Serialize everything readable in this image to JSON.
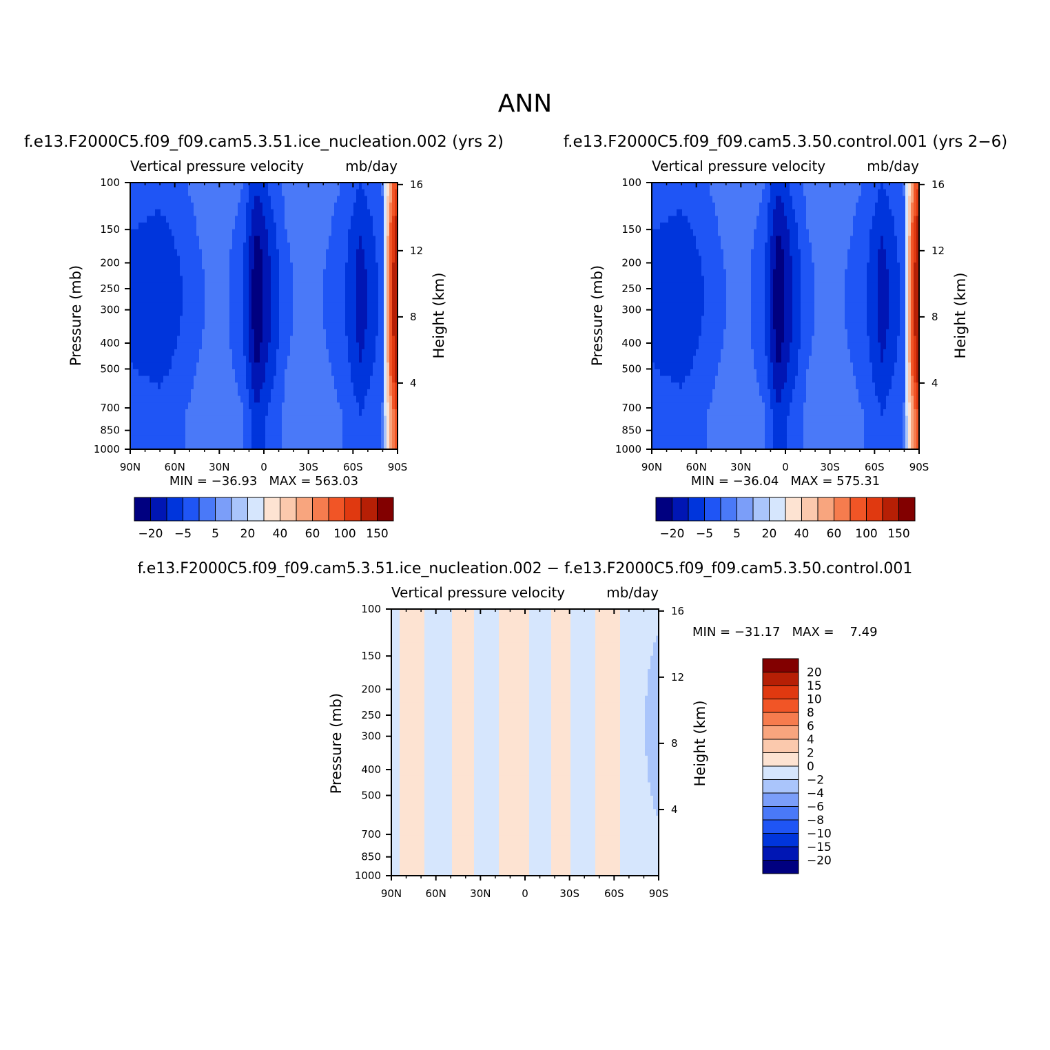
{
  "figure": {
    "season": "ANN"
  },
  "colors": {
    "cool": [
      "#000080",
      "#0016b4",
      "#0035dc",
      "#1f55f5",
      "#4a79f8",
      "#7b9ef9",
      "#aac5fb",
      "#d6e6fd"
    ],
    "warm": [
      "#fde3d2",
      "#fbc9ad",
      "#f8a57e",
      "#f67c4e",
      "#f15526",
      "#e03910",
      "#b61f05",
      "#820000"
    ]
  },
  "panels": [
    {
      "title": "f.e13.F2000C5.f09_f09.cam5.3.51.ice_nucleation.002 (yrs 2)",
      "variable": "Vertical pressure velocity",
      "units": "mb/day",
      "ylabel": "Pressure (mb)",
      "y2label": "Height (km)",
      "stats": "MIN = −36.93   MAX = 563.03",
      "colorbar_labels": [
        "−20",
        "−5",
        "5",
        "20",
        "40",
        "60",
        "100",
        "150"
      ]
    },
    {
      "title": "f.e13.F2000C5.f09_f09.cam5.3.50.control.001 (yrs 2−6)",
      "variable": "Vertical pressure velocity",
      "units": "mb/day",
      "ylabel": "Pressure (mb)",
      "y2label": "Height (km)",
      "stats": "MIN = −36.04   MAX = 575.31",
      "colorbar_labels": [
        "−20",
        "−5",
        "5",
        "20",
        "40",
        "60",
        "100",
        "150"
      ]
    },
    {
      "title": "f.e13.F2000C5.f09_f09.cam5.3.51.ice_nucleation.002 − f.e13.F2000C5.f09_f09.cam5.3.50.control.001",
      "variable": "Vertical pressure velocity",
      "units": "mb/day",
      "ylabel": "Pressure (mb)",
      "y2label": "Height (km)",
      "stats": "MIN = −31.17   MAX =    7.49",
      "colorbar_labels": [
        "20",
        "15",
        "10",
        "8",
        "6",
        "4",
        "2",
        "0",
        "−2",
        "−4",
        "−6",
        "−8",
        "−10",
        "−15",
        "−20"
      ]
    }
  ],
  "chart_data": [
    {
      "type": "heatmap",
      "title": "f.e13.F2000C5.f09_f09.cam5.3.51.ice_nucleation.002 (yrs 2)",
      "xlabel": "",
      "ylabel": "Pressure (mb)",
      "y2label": "Height (km)",
      "x_ticks": [
        "90N",
        "60N",
        "30N",
        "0",
        "30S",
        "60S",
        "90S"
      ],
      "y_ticks": [
        100,
        150,
        200,
        250,
        300,
        400,
        500,
        700,
        850,
        1000
      ],
      "y2_ticks": [
        16,
        12,
        8,
        4
      ],
      "y_scale": "log",
      "ylim": [
        1000,
        100
      ],
      "min": -36.93,
      "max": 563.03,
      "levels": [
        -20,
        -15,
        -10,
        -5,
        0,
        5,
        10,
        20,
        30,
        40,
        50,
        60,
        80,
        100,
        150
      ],
      "lat_bands": [
        {
          "lat": 90,
          "value": -12
        },
        {
          "lat": 70,
          "value": -14
        },
        {
          "lat": 55,
          "value": -10
        },
        {
          "lat": 45,
          "value": -6
        },
        {
          "lat": 30,
          "value": -3
        },
        {
          "lat": 15,
          "value": -8
        },
        {
          "lat": 5,
          "value": -25
        },
        {
          "lat": -5,
          "value": -15
        },
        {
          "lat": -15,
          "value": -6
        },
        {
          "lat": -30,
          "value": -3
        },
        {
          "lat": -45,
          "value": -6
        },
        {
          "lat": -55,
          "value": -10
        },
        {
          "lat": -65,
          "value": -18
        },
        {
          "lat": -80,
          "value": -8
        },
        {
          "lat": -90,
          "value": 150
        }
      ]
    },
    {
      "type": "heatmap",
      "title": "f.e13.F2000C5.f09_f09.cam5.3.50.control.001 (yrs 2−6)",
      "xlabel": "",
      "ylabel": "Pressure (mb)",
      "y2label": "Height (km)",
      "x_ticks": [
        "90N",
        "60N",
        "30N",
        "0",
        "30S",
        "60S",
        "90S"
      ],
      "y_ticks": [
        100,
        150,
        200,
        250,
        300,
        400,
        500,
        700,
        850,
        1000
      ],
      "y2_ticks": [
        16,
        12,
        8,
        4
      ],
      "y_scale": "log",
      "ylim": [
        1000,
        100
      ],
      "min": -36.04,
      "max": 575.31,
      "levels": [
        -20,
        -15,
        -10,
        -5,
        0,
        5,
        10,
        20,
        30,
        40,
        50,
        60,
        80,
        100,
        150
      ],
      "lat_bands": [
        {
          "lat": 90,
          "value": -12
        },
        {
          "lat": 70,
          "value": -14
        },
        {
          "lat": 55,
          "value": -10
        },
        {
          "lat": 45,
          "value": -6
        },
        {
          "lat": 30,
          "value": -3
        },
        {
          "lat": 15,
          "value": -8
        },
        {
          "lat": 5,
          "value": -25
        },
        {
          "lat": -5,
          "value": -15
        },
        {
          "lat": -15,
          "value": -6
        },
        {
          "lat": -30,
          "value": -3
        },
        {
          "lat": -45,
          "value": -6
        },
        {
          "lat": -55,
          "value": -10
        },
        {
          "lat": -65,
          "value": -18
        },
        {
          "lat": -80,
          "value": -8
        },
        {
          "lat": -90,
          "value": 150
        }
      ]
    },
    {
      "type": "heatmap",
      "title": "f.e13.F2000C5.f09_f09.cam5.3.51.ice_nucleation.002 − f.e13.F2000C5.f09_f09.cam5.3.50.control.001",
      "xlabel": "",
      "ylabel": "Pressure (mb)",
      "y2label": "Height (km)",
      "x_ticks": [
        "90N",
        "60N",
        "30N",
        "0",
        "30S",
        "60S",
        "90S"
      ],
      "y_ticks": [
        100,
        150,
        200,
        250,
        300,
        400,
        500,
        700,
        850,
        1000
      ],
      "y2_ticks": [
        16,
        12,
        8,
        4
      ],
      "y_scale": "log",
      "ylim": [
        1000,
        100
      ],
      "min": -31.17,
      "max": 7.49,
      "levels": [
        -20,
        -15,
        -10,
        -8,
        -6,
        -4,
        -2,
        0,
        2,
        4,
        6,
        8,
        10,
        15,
        20
      ],
      "lat_bands": [
        {
          "lat": 90,
          "value": -1
        },
        {
          "lat": 78,
          "value": 1
        },
        {
          "lat": 58,
          "value": -1
        },
        {
          "lat": 40,
          "value": 1
        },
        {
          "lat": 28,
          "value": -1
        },
        {
          "lat": 8,
          "value": 1
        },
        {
          "lat": -15,
          "value": -1
        },
        {
          "lat": -22,
          "value": 1
        },
        {
          "lat": -40,
          "value": -1
        },
        {
          "lat": -55,
          "value": 1
        },
        {
          "lat": -72,
          "value": -1
        },
        {
          "lat": -90,
          "value": -3
        }
      ]
    }
  ]
}
